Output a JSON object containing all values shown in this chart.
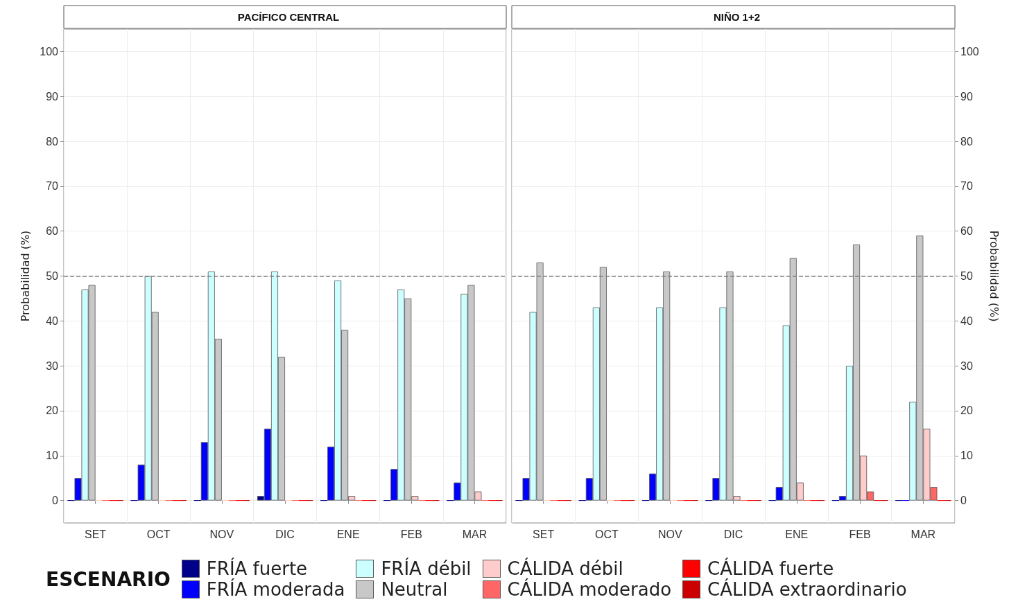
{
  "chart_data": [
    {
      "type": "bar",
      "title": "PACÍFICO CENTRAL",
      "ylabel": "Probabilidad (%)",
      "legend_title": "ESCENARIO",
      "categories": [
        "SET",
        "OCT",
        "NOV",
        "DIC",
        "ENE",
        "FEB",
        "MAR"
      ],
      "ylim": [
        -5,
        105
      ],
      "yticks": [
        0,
        10,
        20,
        30,
        40,
        50,
        60,
        70,
        80,
        90,
        100
      ],
      "grid": true,
      "legend": "bottom",
      "ref_lines": [
        {
          "axis": "y",
          "value": 50,
          "color": "#808080",
          "line_style": "dashed"
        }
      ],
      "series": [
        {
          "name": "FRÍA fuerte",
          "color": "#00008b",
          "values": [
            0,
            0,
            0,
            1,
            0,
            0,
            0
          ]
        },
        {
          "name": "FRÍA moderada",
          "color": "#0000ff",
          "values": [
            5,
            8,
            13,
            16,
            12,
            7,
            4
          ]
        },
        {
          "name": "FRÍA débil",
          "color": "#ccffff",
          "values": [
            47,
            50,
            51,
            51,
            49,
            47,
            46
          ]
        },
        {
          "name": "Neutral",
          "color": "#c8c8c8",
          "values": [
            48,
            42,
            36,
            32,
            38,
            45,
            48
          ]
        },
        {
          "name": "CÁLIDA débil",
          "color": "#ffcccc",
          "values": [
            0,
            0,
            0,
            0,
            1,
            1,
            2
          ]
        },
        {
          "name": "CÁLIDA moderado",
          "color": "#ff6666",
          "values": [
            0,
            0,
            0,
            0,
            0,
            0,
            0
          ]
        },
        {
          "name": "CÁLIDA fuerte",
          "color": "#ff0000",
          "values": [
            0,
            0,
            0,
            0,
            0,
            0,
            0
          ]
        },
        {
          "name": "CÁLIDA extraordinario",
          "color": "#cc0000",
          "values": [
            0,
            0,
            0,
            0,
            0,
            0,
            0
          ]
        }
      ]
    },
    {
      "type": "bar",
      "title": "NIÑO 1+2",
      "ylabel": "Probabilidad (%)",
      "categories": [
        "SET",
        "OCT",
        "NOV",
        "DIC",
        "ENE",
        "FEB",
        "MAR"
      ],
      "ylim": [
        -5,
        105
      ],
      "yticks": [
        0,
        10,
        20,
        30,
        40,
        50,
        60,
        70,
        80,
        90,
        100
      ],
      "grid": true,
      "legend": "bottom",
      "ref_lines": [
        {
          "axis": "y",
          "value": 50,
          "color": "#808080",
          "line_style": "dashed"
        }
      ],
      "series": [
        {
          "name": "FRÍA fuerte",
          "color": "#00008b",
          "values": [
            0,
            0,
            0,
            0,
            0,
            0,
            0
          ]
        },
        {
          "name": "FRÍA moderada",
          "color": "#0000ff",
          "values": [
            5,
            5,
            6,
            5,
            3,
            1,
            0
          ]
        },
        {
          "name": "FRÍA débil",
          "color": "#ccffff",
          "values": [
            42,
            43,
            43,
            43,
            39,
            30,
            22
          ]
        },
        {
          "name": "Neutral",
          "color": "#c8c8c8",
          "values": [
            53,
            52,
            51,
            51,
            54,
            57,
            59
          ]
        },
        {
          "name": "CÁLIDA débil",
          "color": "#ffcccc",
          "values": [
            0,
            0,
            0,
            1,
            4,
            10,
            16
          ]
        },
        {
          "name": "CÁLIDA moderado",
          "color": "#ff6666",
          "values": [
            0,
            0,
            0,
            0,
            0,
            2,
            3
          ]
        },
        {
          "name": "CÁLIDA fuerte",
          "color": "#ff0000",
          "values": [
            0,
            0,
            0,
            0,
            0,
            0,
            0
          ]
        },
        {
          "name": "CÁLIDA extraordinario",
          "color": "#cc0000",
          "values": [
            0,
            0,
            0,
            0,
            0,
            0,
            0
          ]
        }
      ]
    }
  ]
}
